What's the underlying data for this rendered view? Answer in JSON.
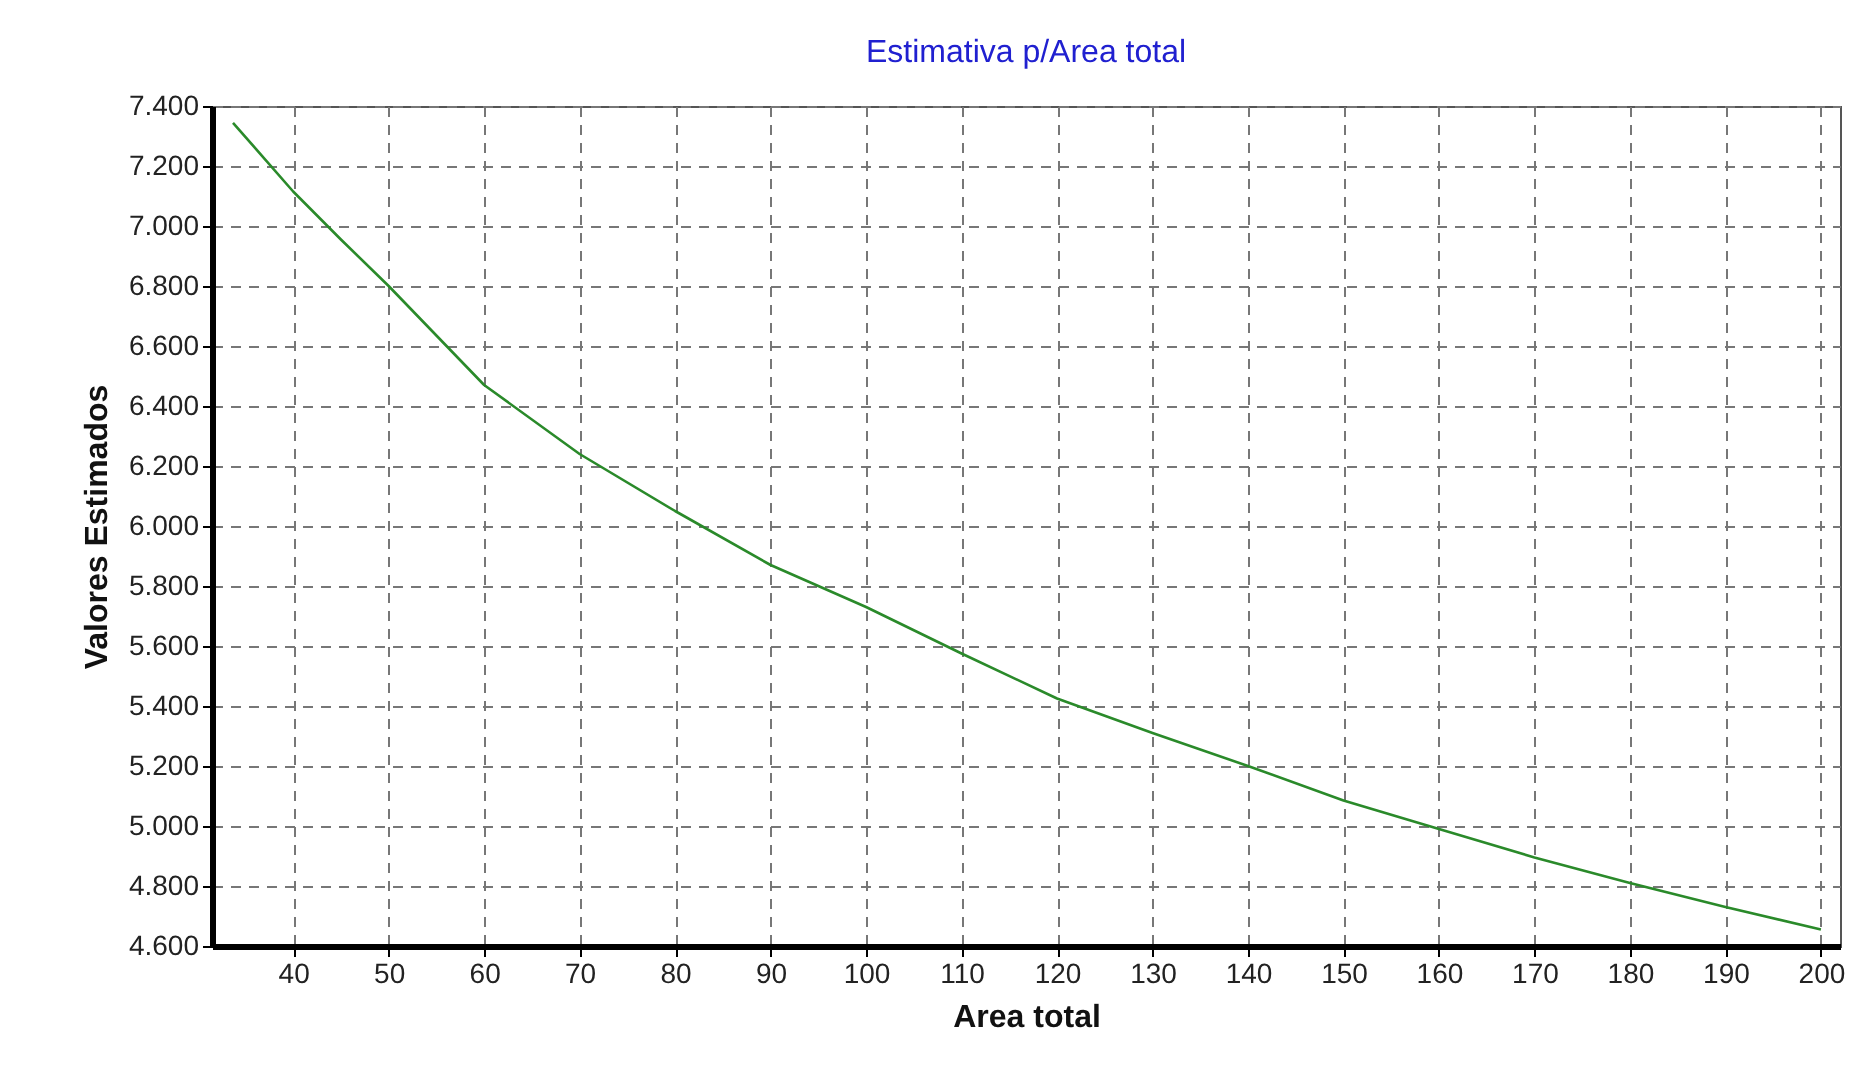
{
  "chart_data": {
    "type": "line",
    "title": "Estimativa p/Area total",
    "xlabel": "Area total",
    "ylabel": "Valores Estimados",
    "x": [
      33.7,
      40,
      45,
      50,
      60,
      70,
      80,
      90,
      100,
      110,
      120,
      130,
      140,
      150,
      160,
      170,
      180,
      190,
      200
    ],
    "series": [
      {
        "color": "#2a8a2a",
        "values": [
          7344,
          7115,
          6955,
          6800,
          6470,
          6240,
          6050,
          5870,
          5730,
          5575,
          5425,
          5310,
          5200,
          5085,
          4990,
          4895,
          4810,
          4730,
          4655
        ]
      }
    ],
    "xlim": [
      31.5,
      202
    ],
    "xticks": [
      40,
      50,
      60,
      70,
      80,
      90,
      100,
      110,
      120,
      130,
      140,
      150,
      160,
      170,
      180,
      190,
      200
    ],
    "ylim": [
      4600,
      7400
    ],
    "yticks": [
      {
        "value": 4600,
        "label": "4.600"
      },
      {
        "value": 4800,
        "label": "4.800"
      },
      {
        "value": 5000,
        "label": "5.000"
      },
      {
        "value": 5200,
        "label": "5.200"
      },
      {
        "value": 5400,
        "label": "5.400"
      },
      {
        "value": 5600,
        "label": "5.600"
      },
      {
        "value": 5800,
        "label": "5.800"
      },
      {
        "value": 6000,
        "label": "6.000"
      },
      {
        "value": 6200,
        "label": "6.200"
      },
      {
        "value": 6400,
        "label": "6.400"
      },
      {
        "value": 6600,
        "label": "6.600"
      },
      {
        "value": 6800,
        "label": "6.800"
      },
      {
        "value": 7000,
        "label": "7.000"
      },
      {
        "value": 7200,
        "label": "7.200"
      },
      {
        "value": 7400,
        "label": "7.400"
      }
    ],
    "grid": true,
    "marker": "none",
    "line_style": "solid"
  }
}
